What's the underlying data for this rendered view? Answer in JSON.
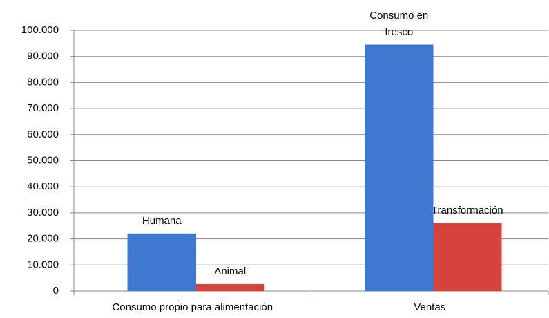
{
  "chart_data": {
    "type": "bar",
    "categories": [
      "Consumo propio para alimentación",
      "Ventas"
    ],
    "series": [
      {
        "color": "#3f78d0",
        "values": [
          22000,
          94500
        ],
        "value_labels": [
          "Humana",
          "Consumo en fresco"
        ]
      },
      {
        "color": "#d8423d",
        "values": [
          2600,
          26000
        ],
        "value_labels": [
          "Animal",
          "Transformación"
        ]
      }
    ],
    "ylim": [
      0,
      100000
    ],
    "yticks": [
      0,
      {
        "value": 10000,
        "label": "10.000"
      },
      {
        "value": 20000,
        "label": "20.000"
      },
      {
        "value": 30000,
        "label": "30.000"
      },
      {
        "value": 40000,
        "label": "40.000"
      },
      {
        "value": 50000,
        "label": "50.000"
      },
      {
        "value": 60000,
        "label": "60.000"
      },
      {
        "value": 70000,
        "label": "70.000"
      },
      {
        "value": 80000,
        "label": "80.000"
      },
      {
        "value": 90000,
        "label": "90.000"
      },
      {
        "value": 100000,
        "label": "100.000"
      }
    ],
    "grid": true
  }
}
